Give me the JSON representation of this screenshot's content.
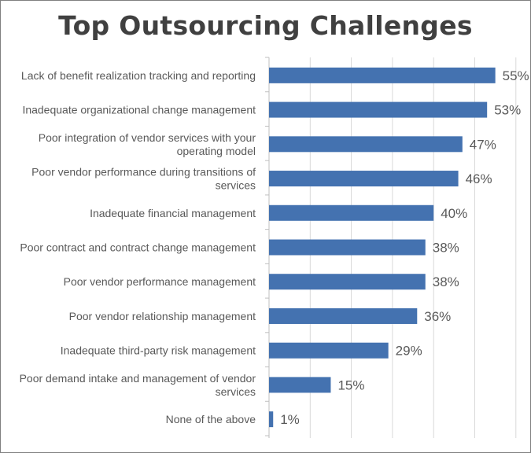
{
  "chart_data": {
    "type": "bar",
    "orientation": "horizontal",
    "title": "Top Outsourcing Challenges",
    "categories": [
      "Lack of benefit realization tracking and reporting",
      "Inadequate organizational change management",
      "Poor integration of vendor services with your operating model",
      "Poor vendor performance during transitions of services",
      "Inadequate financial management",
      "Poor contract and contract change management",
      "Poor vendor performance management",
      "Poor vendor relationship management",
      "Inadequate third-party risk management",
      "Poor demand intake and management of vendor services",
      "None of the above"
    ],
    "category_lines": [
      [
        "Lack of benefit realization tracking and reporting"
      ],
      [
        "Inadequate organizational change management"
      ],
      [
        "Poor integration of vendor services with your",
        "operating model"
      ],
      [
        "Poor vendor performance during transitions of",
        "services"
      ],
      [
        "Inadequate financial management"
      ],
      [
        "Poor contract and contract change management"
      ],
      [
        "Poor vendor performance management"
      ],
      [
        "Poor vendor relationship management"
      ],
      [
        "Inadequate third-party risk management"
      ],
      [
        "Poor demand intake and management of vendor",
        "services"
      ],
      [
        "None of the above"
      ]
    ],
    "values": [
      55,
      53,
      47,
      46,
      40,
      38,
      38,
      36,
      29,
      15,
      1
    ],
    "data_labels": [
      "55%",
      "53%",
      "47%",
      "46%",
      "40%",
      "38%",
      "38%",
      "36%",
      "29%",
      "15%",
      "1%"
    ],
    "xlim": [
      0,
      60
    ],
    "xticks": [
      0,
      10,
      20,
      30,
      40,
      50,
      60
    ],
    "grid": true,
    "xlabel": "",
    "ylabel": "",
    "bar_color": "#4472b0"
  }
}
